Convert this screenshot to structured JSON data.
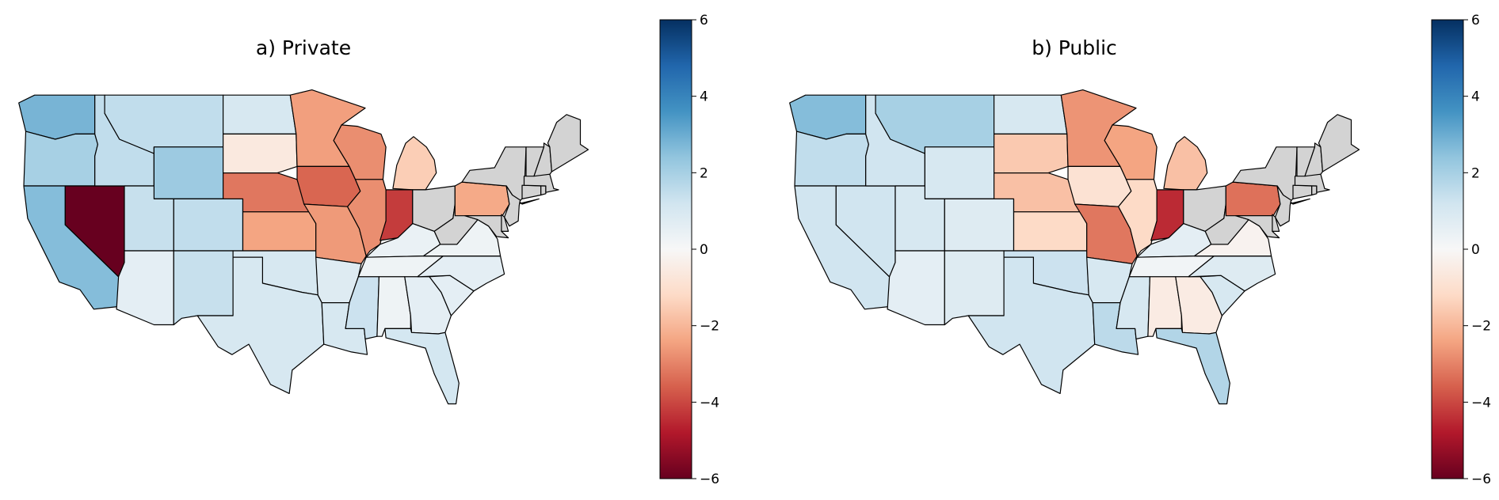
{
  "figure": {
    "panels": [
      {
        "id": "private",
        "title": "a) Private"
      },
      {
        "id": "public",
        "title": "b) Public"
      }
    ]
  },
  "colorbar": {
    "ticks": [
      "6",
      "4",
      "2",
      "0",
      "−2",
      "−4",
      "−6"
    ],
    "range": [
      -6,
      6
    ],
    "colormap": "RdBu"
  },
  "colors": {
    "no_data": "#d3d3d3",
    "border": "#000000"
  },
  "chart_data": [
    {
      "type": "choropleth",
      "title": "a) Private",
      "region": "Contiguous United States",
      "scale": [
        -6,
        6
      ],
      "values": {
        "WA": 2.8,
        "OR": 2.0,
        "CA": 2.6,
        "NV": -6.0,
        "ID": 1.5,
        "MT": 1.5,
        "WY": 2.2,
        "UT": 1.4,
        "AZ": 0.6,
        "CO": 1.5,
        "NM": 1.4,
        "ND": 1.0,
        "SD": -0.6,
        "NE": -3.2,
        "KS": -2.4,
        "OK": 1.0,
        "TX": 1.0,
        "MN": -2.5,
        "IA": -3.5,
        "MO": -2.6,
        "AR": 0.8,
        "LA": 1.0,
        "WI": -2.8,
        "IL": -2.8,
        "MI": -1.5,
        "IN": -4.2,
        "OH": null,
        "KY": 0.4,
        "TN": 0.3,
        "MS": 1.3,
        "AL": 0.3,
        "GA": 0.6,
        "FL": 1.1,
        "SC": 0.6,
        "NC": 0.6,
        "VA": 0.3,
        "WV": null,
        "PA": -2.3,
        "NY": null,
        "NJ": null,
        "MD": null,
        "DE": null,
        "CT": null,
        "RI": null,
        "MA": null,
        "VT": null,
        "NH": null,
        "ME": null
      }
    },
    {
      "type": "choropleth",
      "title": "b) Public",
      "region": "Contiguous United States",
      "scale": [
        -6,
        6
      ],
      "values": {
        "WA": 2.6,
        "OR": 1.5,
        "CA": 1.2,
        "NV": 1.2,
        "ID": 1.2,
        "MT": 2.0,
        "WY": 1.0,
        "UT": 1.0,
        "AZ": 0.6,
        "CO": 0.8,
        "NM": 0.8,
        "ND": 1.0,
        "SD": -1.6,
        "NE": -1.8,
        "KS": -1.2,
        "OK": 1.3,
        "TX": 1.2,
        "MN": -2.7,
        "IA": -0.9,
        "MO": -3.2,
        "AR": 1.0,
        "LA": 1.6,
        "WI": -2.4,
        "IL": -1.2,
        "MI": -1.8,
        "IN": -4.5,
        "OH": null,
        "KY": 0.6,
        "TN": 0.2,
        "MS": 1.0,
        "AL": -0.5,
        "GA": -0.5,
        "FL": 1.8,
        "SC": 1.0,
        "NC": 0.8,
        "VA": -0.2,
        "WV": null,
        "PA": -3.3,
        "NY": null,
        "NJ": null,
        "MD": null,
        "DE": null,
        "CT": null,
        "RI": null,
        "MA": null,
        "VT": null,
        "NH": null,
        "ME": null
      }
    }
  ]
}
